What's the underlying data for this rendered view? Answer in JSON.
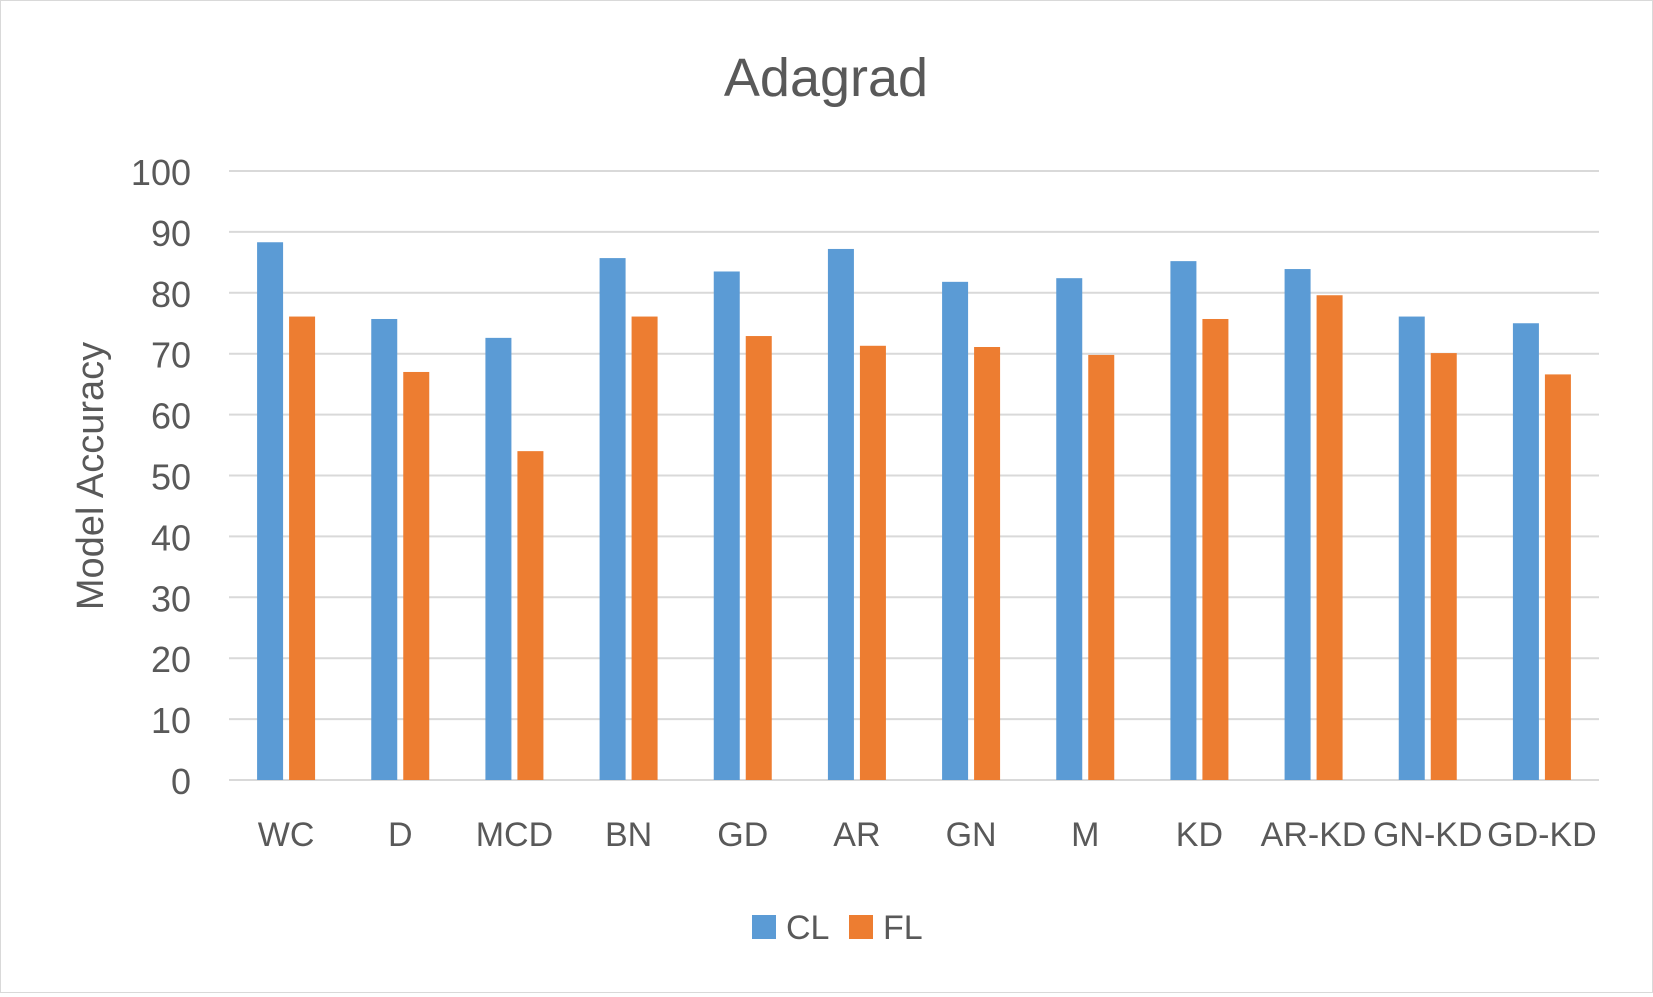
{
  "chart_data": {
    "type": "bar",
    "title": "Adagrad",
    "xlabel": "",
    "ylabel": "Model Accuracy",
    "categories": [
      "WC",
      "D",
      "MCD",
      "BN",
      "GD",
      "AR",
      "GN",
      "M",
      "KD",
      "AR-KD",
      "GN-KD",
      "GD-KD"
    ],
    "series": [
      {
        "name": "CL",
        "color": "#5b9bd5",
        "values": [
          88.3,
          75.7,
          72.6,
          85.7,
          83.5,
          87.2,
          81.8,
          82.4,
          85.2,
          83.9,
          76.1,
          75.0
        ]
      },
      {
        "name": "FL",
        "color": "#ed7d31",
        "values": [
          76.1,
          67.0,
          54.0,
          76.1,
          72.9,
          71.3,
          71.1,
          69.8,
          75.7,
          79.6,
          70.1,
          66.6
        ]
      }
    ],
    "ylim": [
      0,
      100
    ],
    "yticks": [
      "0",
      "10",
      "20",
      "30",
      "40",
      "50",
      "60",
      "70",
      "80",
      "90",
      "100"
    ],
    "grid": true,
    "legend_position": "bottom"
  }
}
